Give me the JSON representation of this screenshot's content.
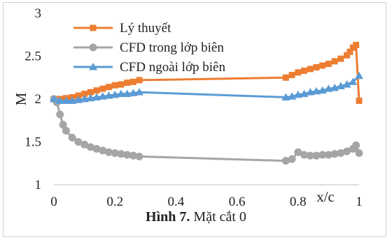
{
  "chart_data": {
    "type": "line",
    "xlabel": "x/c",
    "ylabel": "M",
    "xlim": [
      0,
      1
    ],
    "ylim": [
      1,
      3
    ],
    "x_ticks": [
      "0",
      "0.2",
      "0.4",
      "0.6",
      "0.8",
      "1"
    ],
    "y_ticks": [
      "1",
      "1.5",
      "2",
      "2.5",
      "3"
    ],
    "legend_position": "top-left",
    "grid": false,
    "series": [
      {
        "name": "Lý thuyết",
        "color": "#ed7d31",
        "marker": "square",
        "x": [
          0,
          0.02,
          0.04,
          0.06,
          0.08,
          0.1,
          0.12,
          0.14,
          0.16,
          0.18,
          0.2,
          0.22,
          0.24,
          0.26,
          0.28,
          0.76,
          0.78,
          0.8,
          0.82,
          0.84,
          0.86,
          0.88,
          0.9,
          0.92,
          0.94,
          0.96,
          0.97,
          0.98,
          0.99,
          1.0
        ],
        "y": [
          2.0,
          2.0,
          2.01,
          2.02,
          2.04,
          2.06,
          2.08,
          2.1,
          2.12,
          2.14,
          2.16,
          2.17,
          2.19,
          2.2,
          2.22,
          2.25,
          2.28,
          2.31,
          2.33,
          2.35,
          2.37,
          2.39,
          2.41,
          2.44,
          2.47,
          2.51,
          2.55,
          2.6,
          2.63,
          1.98
        ]
      },
      {
        "name": "CFD trong lớp biên",
        "color": "#a5a5a5",
        "marker": "circle",
        "x": [
          0,
          0.01,
          0.02,
          0.03,
          0.04,
          0.06,
          0.08,
          0.1,
          0.12,
          0.14,
          0.16,
          0.18,
          0.2,
          0.22,
          0.24,
          0.26,
          0.28,
          0.76,
          0.78,
          0.8,
          0.82,
          0.84,
          0.86,
          0.88,
          0.9,
          0.92,
          0.94,
          0.96,
          0.98,
          0.99,
          1.0
        ],
        "y": [
          2.0,
          1.96,
          1.82,
          1.7,
          1.63,
          1.55,
          1.5,
          1.47,
          1.44,
          1.42,
          1.4,
          1.38,
          1.37,
          1.36,
          1.35,
          1.34,
          1.33,
          1.28,
          1.3,
          1.38,
          1.35,
          1.34,
          1.34,
          1.35,
          1.35,
          1.36,
          1.37,
          1.39,
          1.42,
          1.46,
          1.37
        ]
      },
      {
        "name": "CFD ngoài lớp biên",
        "color": "#5b9bd5",
        "marker": "triangle",
        "x": [
          0,
          0.02,
          0.04,
          0.06,
          0.08,
          0.1,
          0.12,
          0.14,
          0.16,
          0.18,
          0.2,
          0.22,
          0.24,
          0.26,
          0.28,
          0.76,
          0.78,
          0.8,
          0.82,
          0.84,
          0.86,
          0.88,
          0.9,
          0.92,
          0.94,
          0.96,
          0.98,
          1.0
        ],
        "y": [
          2.0,
          1.98,
          1.98,
          1.98,
          1.99,
          2.0,
          2.01,
          2.02,
          2.03,
          2.04,
          2.05,
          2.06,
          2.06,
          2.07,
          2.08,
          2.02,
          2.03,
          2.05,
          2.06,
          2.08,
          2.09,
          2.1,
          2.12,
          2.13,
          2.15,
          2.17,
          2.2,
          2.27
        ]
      }
    ]
  },
  "caption": {
    "label": "Hình 7.",
    "text": " Mặt cắt 0"
  }
}
